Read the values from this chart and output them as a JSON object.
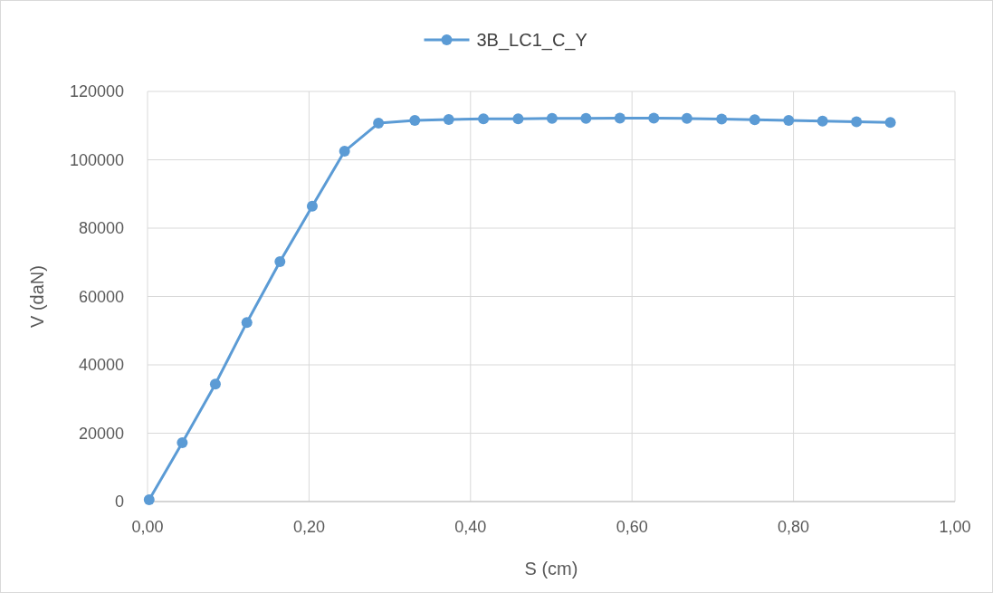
{
  "chart_data": {
    "type": "line",
    "xlabel": "S (cm)",
    "ylabel": "V (daN)",
    "xlim": [
      0,
      1
    ],
    "xticks": [
      {
        "value": 0,
        "label": "0,00"
      },
      {
        "value": 0.2,
        "label": "0,20"
      },
      {
        "value": 0.4,
        "label": "0,40"
      },
      {
        "value": 0.6,
        "label": "0,60"
      },
      {
        "value": 0.8,
        "label": "0,80"
      },
      {
        "value": 1,
        "label": "1,00"
      }
    ],
    "ylim": [
      0,
      120000
    ],
    "yticks": [
      0,
      20000,
      40000,
      60000,
      80000,
      100000,
      120000
    ],
    "grid": true,
    "legend": "top",
    "marker": "circle",
    "line_style": "solid",
    "series": [
      {
        "name": "3B_LC1_C_Y",
        "color": "#5b9bd5",
        "x": [
          0.002,
          0.043,
          0.084,
          0.123,
          0.164,
          0.204,
          0.244,
          0.286,
          0.331,
          0.373,
          0.416,
          0.459,
          0.501,
          0.543,
          0.585,
          0.627,
          0.668,
          0.711,
          0.752,
          0.794,
          0.836,
          0.878,
          0.92
        ],
        "values": [
          500,
          17200,
          34400,
          52400,
          70200,
          86400,
          102500,
          110700,
          111500,
          111800,
          112000,
          112000,
          112100,
          112100,
          112200,
          112200,
          112100,
          111900,
          111700,
          111500,
          111300,
          111100,
          110900
        ]
      }
    ]
  }
}
